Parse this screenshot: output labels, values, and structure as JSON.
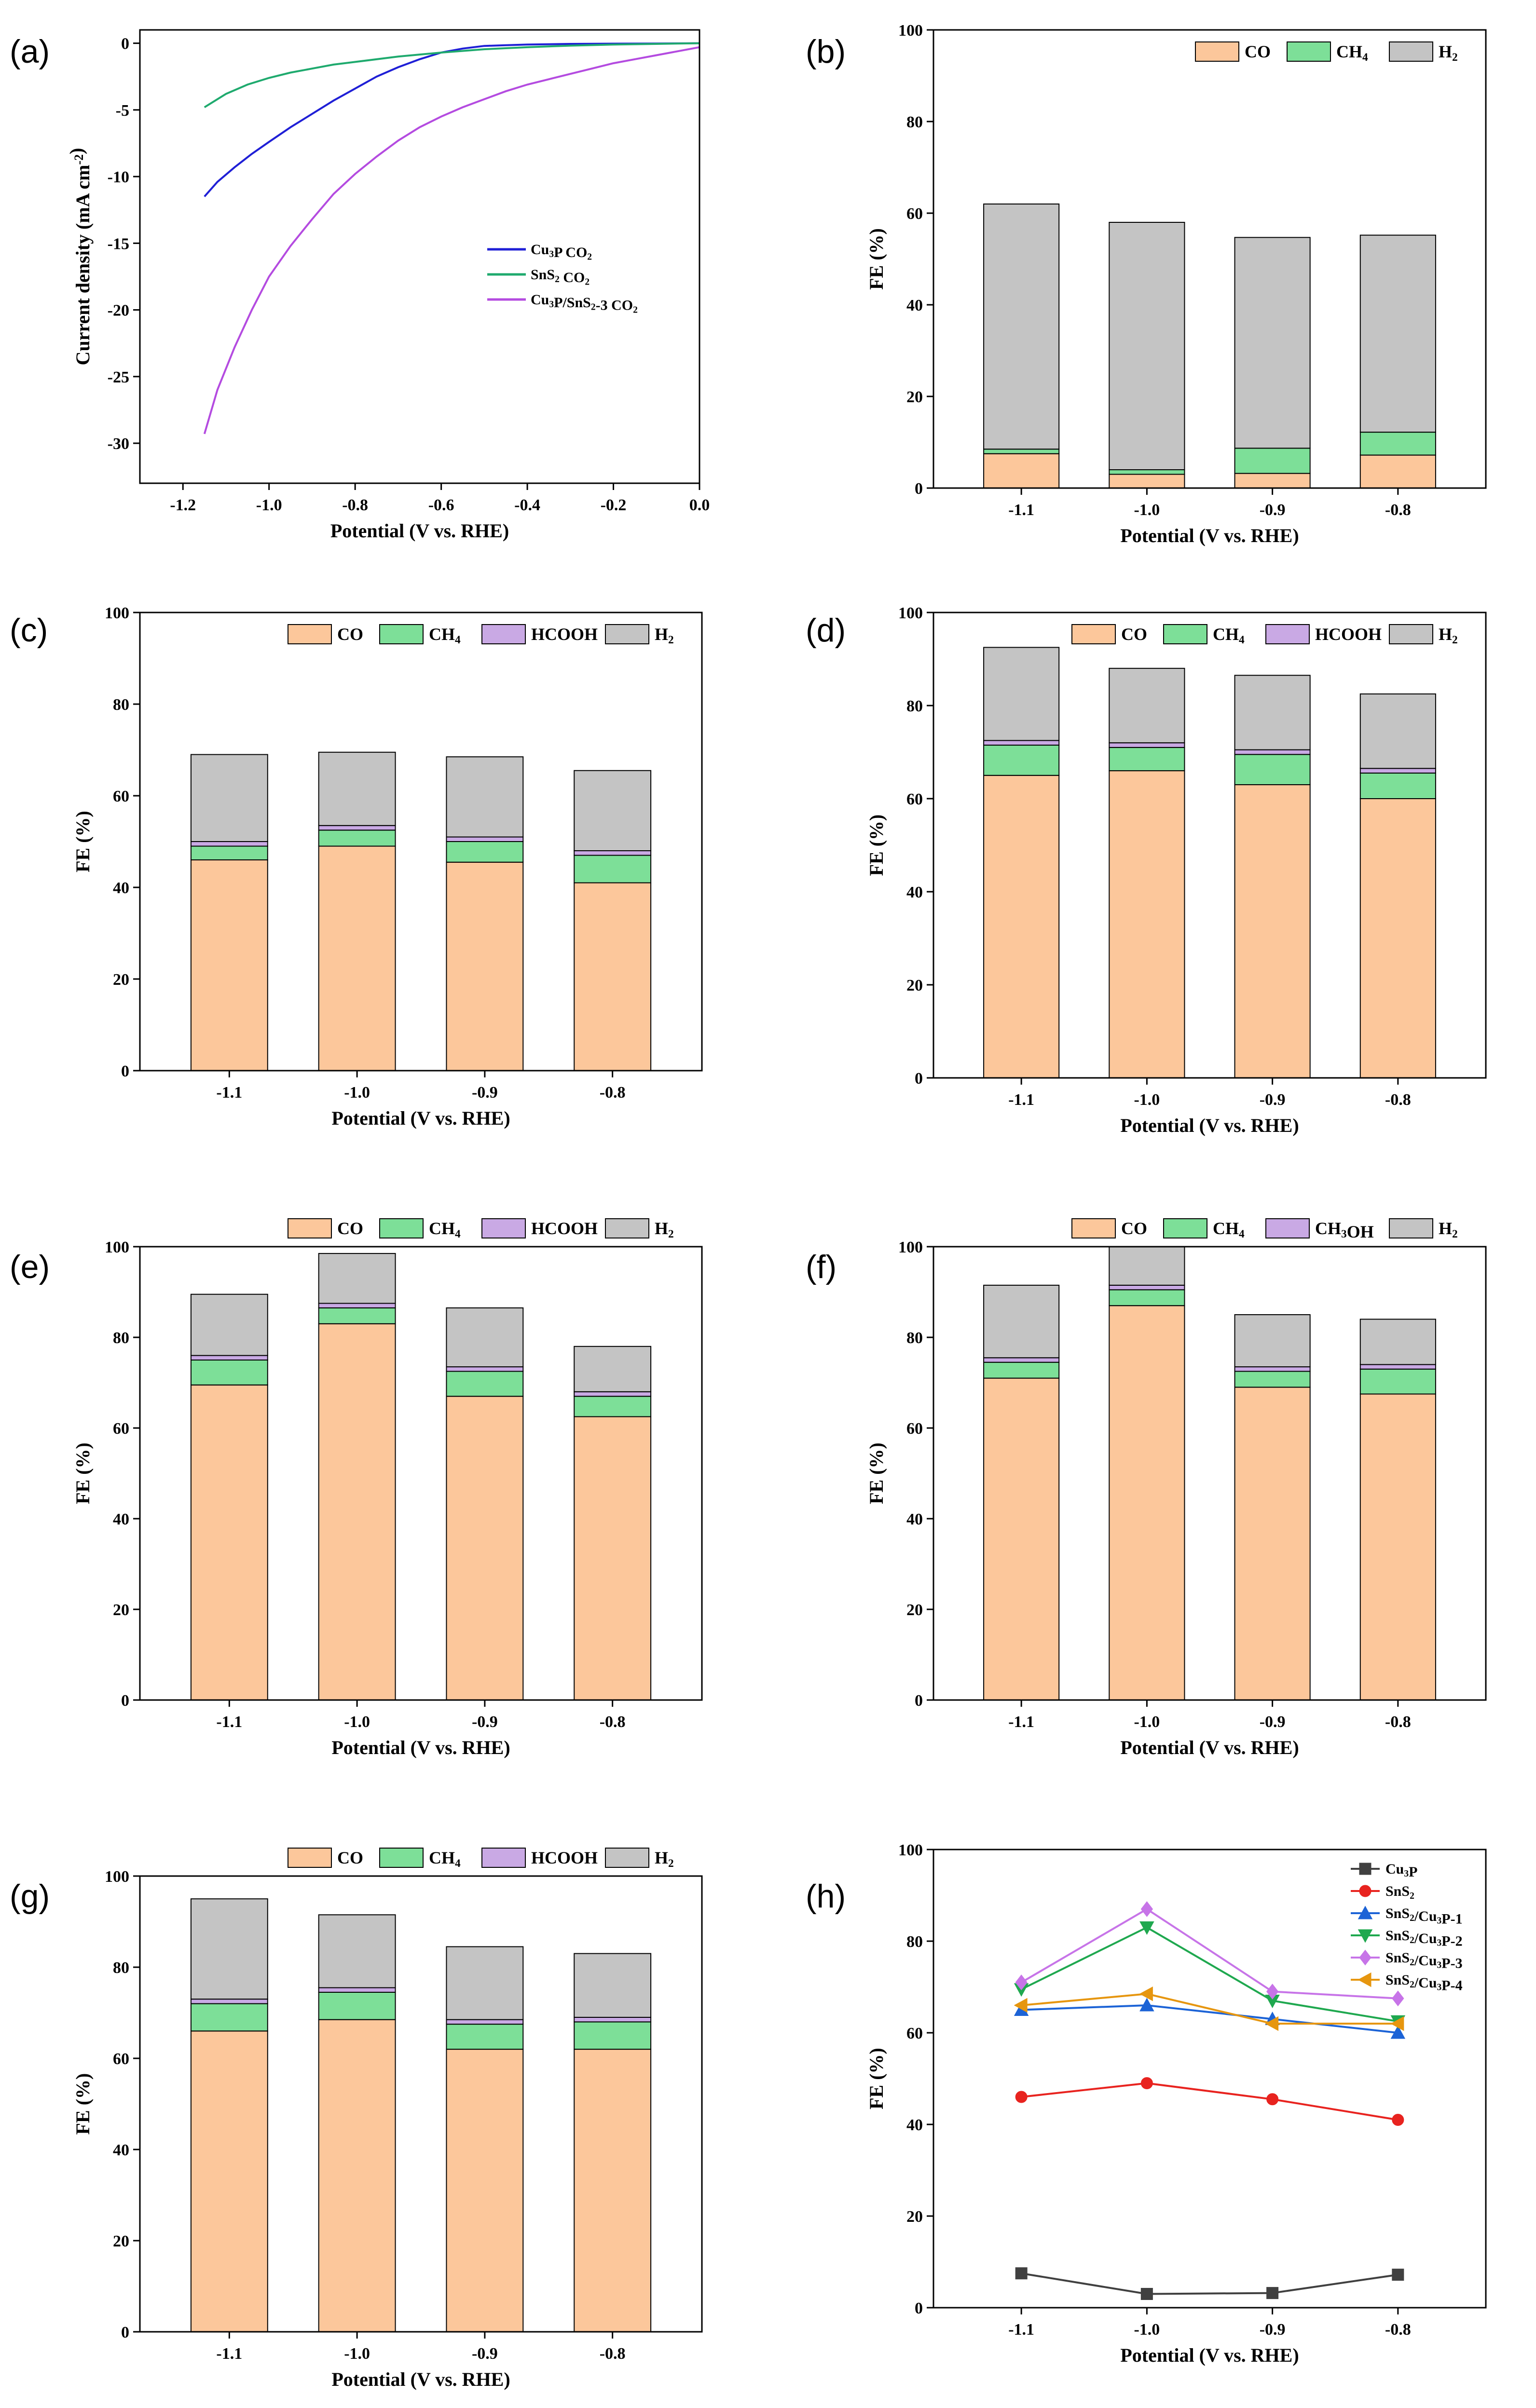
{
  "chart_data": [
    {
      "id": "a",
      "type": "line",
      "panel_label": "(a)",
      "xlabel": "Potential (V vs. RHE)",
      "ylabel": "Current density (mA cm⁻²)",
      "xlim": [
        -1.3,
        0.0
      ],
      "ylim": [
        -33,
        1
      ],
      "xticks": [
        -1.2,
        -1.0,
        -0.8,
        -0.6,
        -0.4,
        -0.2,
        0.0
      ],
      "xtick_labels": [
        "-1.2",
        "-1.0",
        "-0.8",
        "-0.6",
        "-0.4",
        "-0.2",
        "0.0"
      ],
      "yticks": [
        0,
        -5,
        -10,
        -15,
        -20,
        -25,
        -30
      ],
      "ytick_labels": [
        "0",
        "-5",
        "-10",
        "-15",
        "-20",
        "-25",
        "-30"
      ],
      "legend_position": "center-right",
      "series": [
        {
          "name": "Cu₃P  CO₂",
          "color": "#1f1fd6",
          "x": [
            -1.15,
            -1.12,
            -1.08,
            -1.04,
            -1.0,
            -0.95,
            -0.9,
            -0.85,
            -0.8,
            -0.75,
            -0.7,
            -0.65,
            -0.6,
            -0.55,
            -0.5,
            -0.45,
            -0.4,
            -0.3,
            -0.2,
            -0.1,
            0.0
          ],
          "y": [
            -11.5,
            -10.4,
            -9.3,
            -8.3,
            -7.4,
            -6.3,
            -5.3,
            -4.3,
            -3.4,
            -2.5,
            -1.8,
            -1.2,
            -0.7,
            -0.4,
            -0.2,
            -0.15,
            -0.1,
            -0.05,
            -0.03,
            -0.02,
            0.0
          ]
        },
        {
          "name": "SnS₂  CO₂",
          "color": "#1faa6e",
          "x": [
            -1.15,
            -1.1,
            -1.05,
            -1.0,
            -0.95,
            -0.9,
            -0.85,
            -0.8,
            -0.7,
            -0.6,
            -0.5,
            -0.4,
            -0.3,
            -0.2,
            -0.1,
            0.0
          ],
          "y": [
            -4.8,
            -3.8,
            -3.1,
            -2.6,
            -2.2,
            -1.9,
            -1.6,
            -1.4,
            -1.0,
            -0.7,
            -0.45,
            -0.3,
            -0.18,
            -0.1,
            -0.05,
            0.0
          ]
        },
        {
          "name": "Cu₃P/SnS₂-3  CO₂",
          "color": "#b44be0",
          "x": [
            -1.15,
            -1.12,
            -1.08,
            -1.04,
            -1.0,
            -0.95,
            -0.9,
            -0.85,
            -0.8,
            -0.75,
            -0.7,
            -0.65,
            -0.6,
            -0.55,
            -0.5,
            -0.45,
            -0.4,
            -0.35,
            -0.3,
            -0.25,
            -0.2,
            -0.15,
            -0.1,
            -0.05,
            0.0
          ],
          "y": [
            -29.3,
            -26.0,
            -22.8,
            -20.0,
            -17.5,
            -15.2,
            -13.2,
            -11.3,
            -9.8,
            -8.5,
            -7.3,
            -6.3,
            -5.5,
            -4.8,
            -4.2,
            -3.6,
            -3.1,
            -2.7,
            -2.3,
            -1.9,
            -1.5,
            -1.2,
            -0.9,
            -0.6,
            -0.3
          ]
        }
      ]
    },
    {
      "id": "b",
      "type": "bar",
      "stacked": true,
      "panel_label": "(b)",
      "xlabel": "Potential (V vs. RHE)",
      "ylabel": "FE (%)",
      "ylim": [
        0,
        100
      ],
      "yticks": [
        0,
        20,
        40,
        60,
        80,
        100
      ],
      "ytick_labels": [
        "0",
        "20",
        "40",
        "60",
        "80",
        "100"
      ],
      "categories": [
        "-1.1",
        "-1.0",
        "-0.9",
        "-0.8"
      ],
      "legend_position": "top-right",
      "series": [
        {
          "name": "CO",
          "color": "#fcc79b",
          "values": [
            7.5,
            3.0,
            3.2,
            7.2
          ]
        },
        {
          "name": "CH₄",
          "color": "#7ddf98",
          "values": [
            1.0,
            1.0,
            5.5,
            5.0
          ]
        },
        {
          "name": "H₂",
          "color": "#c4c4c4",
          "values": [
            53.5,
            54.0,
            46.0,
            43.0
          ]
        }
      ]
    },
    {
      "id": "c",
      "type": "bar",
      "stacked": true,
      "panel_label": "(c)",
      "xlabel": "Potential (V vs. RHE)",
      "ylabel": "FE (%)",
      "ylim": [
        0,
        100
      ],
      "yticks": [
        0,
        20,
        40,
        60,
        80,
        100
      ],
      "ytick_labels": [
        "0",
        "20",
        "40",
        "60",
        "80",
        "100"
      ],
      "categories": [
        "-1.1",
        "-1.0",
        "-0.9",
        "-0.8"
      ],
      "legend_position": "top-right",
      "series": [
        {
          "name": "CO",
          "color": "#fcc79b",
          "values": [
            46.0,
            49.0,
            45.5,
            41.0
          ]
        },
        {
          "name": "CH₄",
          "color": "#7ddf98",
          "values": [
            3.0,
            3.5,
            4.5,
            6.0
          ]
        },
        {
          "name": "HCOOH",
          "color": "#c9a9e4",
          "values": [
            1.0,
            1.0,
            1.0,
            1.0
          ]
        },
        {
          "name": "H₂",
          "color": "#c4c4c4",
          "values": [
            19.0,
            16.0,
            17.5,
            17.5
          ]
        }
      ]
    },
    {
      "id": "d",
      "type": "bar",
      "stacked": true,
      "panel_label": "(d)",
      "xlabel": "Potential (V vs. RHE)",
      "ylabel": "FE (%)",
      "ylim": [
        0,
        100
      ],
      "yticks": [
        0,
        20,
        40,
        60,
        80,
        100
      ],
      "ytick_labels": [
        "0",
        "20",
        "40",
        "60",
        "80",
        "100"
      ],
      "categories": [
        "-1.1",
        "-1.0",
        "-0.9",
        "-0.8"
      ],
      "legend_position": "top-right",
      "series": [
        {
          "name": "CO",
          "color": "#fcc79b",
          "values": [
            65.0,
            66.0,
            63.0,
            60.0
          ]
        },
        {
          "name": "CH₄",
          "color": "#7ddf98",
          "values": [
            6.5,
            5.0,
            6.5,
            5.5
          ]
        },
        {
          "name": "HCOOH",
          "color": "#c9a9e4",
          "values": [
            1.0,
            1.0,
            1.0,
            1.0
          ]
        },
        {
          "name": "H₂",
          "color": "#c4c4c4",
          "values": [
            20.0,
            16.0,
            16.0,
            16.0
          ]
        }
      ]
    },
    {
      "id": "e",
      "type": "bar",
      "stacked": true,
      "panel_label": "(e)",
      "xlabel": "Potential (V vs. RHE)",
      "ylabel": "FE (%)",
      "ylim": [
        0,
        100
      ],
      "yticks": [
        0,
        20,
        40,
        60,
        80,
        100
      ],
      "ytick_labels": [
        "0",
        "20",
        "40",
        "60",
        "80",
        "100"
      ],
      "categories": [
        "-1.1",
        "-1.0",
        "-0.9",
        "-0.8"
      ],
      "legend_position": "top-right-outside",
      "series": [
        {
          "name": "CO",
          "color": "#fcc79b",
          "values": [
            69.5,
            83.0,
            67.0,
            62.5
          ]
        },
        {
          "name": "CH₄",
          "color": "#7ddf98",
          "values": [
            5.5,
            3.5,
            5.5,
            4.5
          ]
        },
        {
          "name": "HCOOH",
          "color": "#c9a9e4",
          "values": [
            1.0,
            1.0,
            1.0,
            1.0
          ]
        },
        {
          "name": "H₂",
          "color": "#c4c4c4",
          "values": [
            13.5,
            11.0,
            13.0,
            10.0
          ]
        }
      ]
    },
    {
      "id": "f",
      "type": "bar",
      "stacked": true,
      "panel_label": "(f)",
      "xlabel": "Potential (V vs. RHE)",
      "ylabel": "FE (%)",
      "ylim": [
        0,
        100
      ],
      "yticks": [
        0,
        20,
        40,
        60,
        80,
        100
      ],
      "ytick_labels": [
        "0",
        "20",
        "40",
        "60",
        "80",
        "100"
      ],
      "categories": [
        "-1.1",
        "-1.0",
        "-0.9",
        "-0.8"
      ],
      "legend_position": "top-right-outside",
      "series": [
        {
          "name": "CO",
          "color": "#fcc79b",
          "values": [
            71.0,
            87.0,
            69.0,
            67.5
          ]
        },
        {
          "name": "CH₄",
          "color": "#7ddf98",
          "values": [
            3.5,
            3.5,
            3.5,
            5.5
          ]
        },
        {
          "name": "CH₃OH",
          "color": "#c9a9e4",
          "values": [
            1.0,
            1.0,
            1.0,
            1.0
          ]
        },
        {
          "name": "H₂",
          "color": "#c4c4c4",
          "values": [
            16.0,
            8.5,
            11.5,
            10.0
          ]
        }
      ]
    },
    {
      "id": "g",
      "type": "bar",
      "stacked": true,
      "panel_label": "(g)",
      "xlabel": "Potential (V vs. RHE)",
      "ylabel": "FE (%)",
      "ylim": [
        0,
        100
      ],
      "yticks": [
        0,
        20,
        40,
        60,
        80,
        100
      ],
      "ytick_labels": [
        "0",
        "20",
        "40",
        "60",
        "80",
        "100"
      ],
      "categories": [
        "-1.1",
        "-1.0",
        "-0.9",
        "-0.8"
      ],
      "legend_position": "top-right-outside",
      "series": [
        {
          "name": "CO",
          "color": "#fcc79b",
          "values": [
            66.0,
            68.5,
            62.0,
            62.0
          ]
        },
        {
          "name": "CH₄",
          "color": "#7ddf98",
          "values": [
            6.0,
            6.0,
            5.5,
            6.0
          ]
        },
        {
          "name": "HCOOH",
          "color": "#c9a9e4",
          "values": [
            1.0,
            1.0,
            1.0,
            1.0
          ]
        },
        {
          "name": "H₂",
          "color": "#c4c4c4",
          "values": [
            22.0,
            16.0,
            16.0,
            14.0
          ]
        }
      ]
    },
    {
      "id": "h",
      "type": "line",
      "panel_label": "(h)",
      "xlabel": "Potential (V vs. RHE)",
      "ylabel": "FE (%)",
      "ylim": [
        0,
        100
      ],
      "yticks": [
        0,
        20,
        40,
        60,
        80,
        100
      ],
      "ytick_labels": [
        "0",
        "20",
        "40",
        "60",
        "80",
        "100"
      ],
      "categories": [
        "-1.1",
        "-1.0",
        "-0.9",
        "-0.8"
      ],
      "legend_position": "top-right",
      "series": [
        {
          "name": "Cu₃P",
          "color": "#404040",
          "marker": "square",
          "values": [
            7.5,
            3.0,
            3.2,
            7.2
          ]
        },
        {
          "name": "SnS₂",
          "color": "#e8231f",
          "marker": "circle",
          "values": [
            46.0,
            49.0,
            45.5,
            41.0
          ]
        },
        {
          "name": "SnS₂/Cu₃P-1",
          "color": "#1c63d6",
          "marker": "triangle-up",
          "values": [
            65.0,
            66.0,
            63.0,
            60.0
          ]
        },
        {
          "name": "SnS₂/Cu₃P-2",
          "color": "#1fa84f",
          "marker": "triangle-down",
          "values": [
            69.5,
            83.0,
            67.0,
            62.5
          ]
        },
        {
          "name": "SnS₂/Cu₃P-3",
          "color": "#c774e8",
          "marker": "diamond",
          "values": [
            71.0,
            87.0,
            69.0,
            67.5
          ]
        },
        {
          "name": "SnS₂/Cu₃P-4",
          "color": "#e6960f",
          "marker": "left-triangle",
          "values": [
            66.0,
            68.5,
            62.0,
            62.0
          ]
        }
      ]
    }
  ]
}
